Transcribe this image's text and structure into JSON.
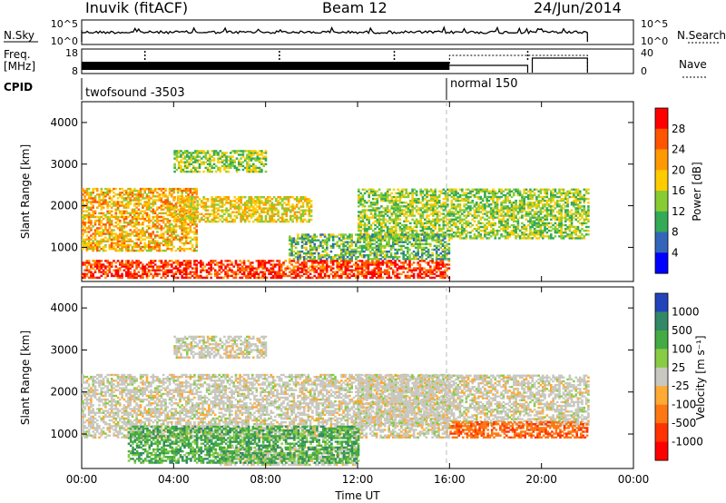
{
  "header": {
    "station": "Inuvik (fitACF)",
    "beam": "Beam 12",
    "date": "24/Jun/2014"
  },
  "panels": {
    "nsky_label": "N.Sky",
    "nsearch_label": "N.Search",
    "freq_label_1": "Freq.",
    "freq_label_2": "[MHz]",
    "nave_label": "Nave",
    "cpid_label": "CPID",
    "nsky_ticks": [
      "10^5",
      "10^0"
    ],
    "nsky_right_ticks": [
      "10^5",
      "10^0"
    ],
    "freq_ticks": [
      "18",
      "8"
    ],
    "nave_ticks": [
      "40",
      "0"
    ]
  },
  "cpid": {
    "segments": [
      {
        "start_h": 0,
        "end_h": 16,
        "label": "twofsound -3503"
      },
      {
        "start_h": 16,
        "end_h": 22,
        "label": "normal 150"
      }
    ]
  },
  "chart_data": [
    {
      "type": "heatmap",
      "title": "Power",
      "xlabel": "Time UT",
      "ylabel": "Slant Range [km]",
      "xlim_hours": [
        0,
        24
      ],
      "ylim_km": [
        180,
        4500
      ],
      "x_ticks": [
        "00:00",
        "04:00",
        "08:00",
        "12:00",
        "16:00",
        "20:00",
        "00:00"
      ],
      "y_ticks": [
        "1000",
        "2000",
        "3000",
        "4000"
      ],
      "colorbar_label": "Power [dB]",
      "colorbar_ticks": [
        "28",
        "24",
        "20",
        "16",
        "12",
        "8",
        "4"
      ],
      "colorbar_colors": [
        "#ff0000",
        "#ff5500",
        "#ff9900",
        "#ffcc00",
        "#88cc33",
        "#33aa55",
        "#3366bb",
        "#0000ff"
      ],
      "data_extent_hours": [
        0,
        22
      ],
      "marker_hour": 16,
      "echo_bands": [
        {
          "t0": 0,
          "t1": 16,
          "r0": 250,
          "r1": 700,
          "power_db": 26
        },
        {
          "t0": 0,
          "t1": 5,
          "r0": 900,
          "r1": 2400,
          "power_db": 18
        },
        {
          "t0": 4,
          "t1": 10,
          "r0": 1600,
          "r1": 2200,
          "power_db": 16
        },
        {
          "t0": 4,
          "t1": 8,
          "r0": 2800,
          "r1": 3300,
          "power_db": 12
        },
        {
          "t0": 12,
          "t1": 22,
          "r0": 1200,
          "r1": 2400,
          "power_db": 12
        },
        {
          "t0": 9,
          "t1": 16,
          "r0": 700,
          "r1": 1300,
          "power_db": 10
        }
      ]
    },
    {
      "type": "heatmap",
      "title": "Velocity",
      "xlabel": "Time UT",
      "ylabel": "Slant Range [km]",
      "xlim_hours": [
        0,
        24
      ],
      "ylim_km": [
        180,
        4500
      ],
      "x_ticks": [
        "00:00",
        "04:00",
        "08:00",
        "12:00",
        "16:00",
        "20:00",
        "00:00"
      ],
      "y_ticks": [
        "1000",
        "2000",
        "3000",
        "4000"
      ],
      "colorbar_label": "Velocity [m s⁻¹]",
      "colorbar_ticks": [
        "1000",
        "500",
        "100",
        "25",
        "-25",
        "-100",
        "-500",
        "-1000"
      ],
      "colorbar_colors": [
        "#2244bb",
        "#338866",
        "#44aa44",
        "#88cc44",
        "#c8c8c0",
        "#ffaa33",
        "#ff7711",
        "#ff3300",
        "#ff0000"
      ],
      "data_extent_hours": [
        0,
        22
      ],
      "marker_hour": 16,
      "echo_bands": [
        {
          "t0": 6,
          "t1": 12,
          "r0": 250,
          "r1": 700,
          "velocity": 0
        },
        {
          "t0": 0,
          "t1": 16,
          "r0": 900,
          "r1": 2400,
          "velocity": 0
        },
        {
          "t0": 12,
          "t1": 22,
          "r0": 1200,
          "r1": 2400,
          "velocity": 0
        },
        {
          "t0": 16,
          "t1": 22,
          "r0": 900,
          "r1": 1300,
          "velocity": -100
        },
        {
          "t0": 2,
          "t1": 12,
          "r0": 300,
          "r1": 1200,
          "velocity": 100
        },
        {
          "t0": 4,
          "t1": 8,
          "r0": 2800,
          "r1": 3300,
          "velocity": 0
        }
      ]
    }
  ]
}
